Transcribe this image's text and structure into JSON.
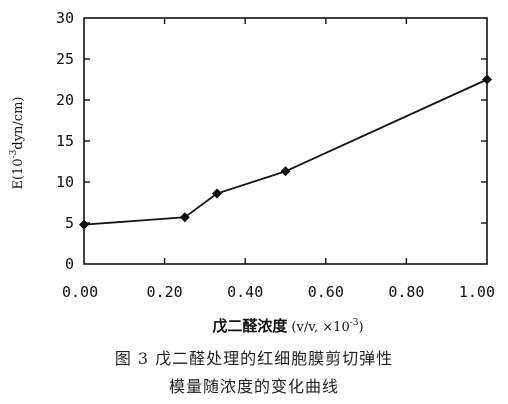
{
  "chart_data": {
    "type": "line",
    "x": [
      0.0,
      0.25,
      0.33,
      0.5,
      1.0
    ],
    "series": [
      {
        "values": [
          4.8,
          5.7,
          8.6,
          11.3,
          22.5
        ]
      }
    ],
    "xlabel_main": "戊二醛浓度",
    "xlabel_unit": "(v/v, ×10",
    "xlabel_exp": "-3",
    "xlabel_close": ")",
    "ylabel_main": "E(10",
    "ylabel_exp": "-3",
    "ylabel_unit": "dyn/cm)",
    "xlim": [
      0,
      1.0
    ],
    "ylim": [
      0,
      30
    ],
    "xticks": [
      "0.00",
      "0.20",
      "0.40",
      "0.60",
      "0.80",
      "1.00"
    ],
    "xtick_values": [
      0,
      0.2,
      0.4,
      0.6,
      0.8,
      1.0
    ],
    "yticks": [
      "0",
      "5",
      "10",
      "15",
      "20",
      "25",
      "30"
    ],
    "ytick_values": [
      0,
      5,
      10,
      15,
      20,
      25,
      30
    ],
    "grid": false,
    "marker": "diamond",
    "line_color": "#111111"
  },
  "caption": {
    "line1": "图 3   戊二醛处理的红细胞膜剪切弹性",
    "line2": "模量随浓度的变化曲线"
  }
}
